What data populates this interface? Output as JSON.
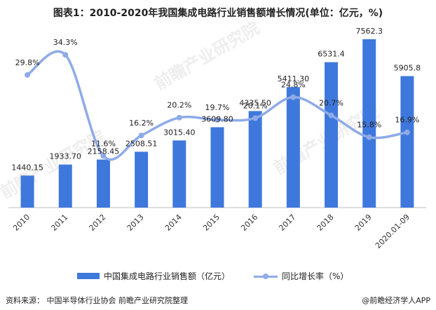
{
  "title": "图表1：2010-2020年我国集成电路行业销售额增长情况(单位：亿元，%)",
  "footer": {
    "source": "资料来源：  中国半导体行业协会  前瞻产业研究院整理",
    "brand": "@前瞻经济学人APP"
  },
  "watermark": "前瞻产业研究院",
  "colors": {
    "bar": "#3f78dc",
    "line": "#8eabe8",
    "marker": "#8eabe8"
  },
  "chart_data": {
    "type": "bar",
    "categories": [
      "2010",
      "2011",
      "2012",
      "2013",
      "2014",
      "2015",
      "2016",
      "2017",
      "2018",
      "2019",
      "2020.01-09"
    ],
    "series": [
      {
        "name": "中国集成电路行业销售额（亿元）",
        "type": "bar",
        "values": [
          1440.15,
          1933.7,
          2158.45,
          2508.51,
          3015.4,
          3609.8,
          4335.5,
          5411.3,
          6531.4,
          7562.3,
          5905.8
        ],
        "labels": [
          "1440.15",
          "1933.70",
          "2158.45",
          "2508.51",
          "3015.40",
          "3609.80",
          "4335.50",
          "5411.30",
          "6531.4",
          "7562.3",
          "5905.8"
        ]
      },
      {
        "name": "同比增长率（%）",
        "type": "line",
        "values": [
          29.8,
          34.3,
          11.6,
          16.2,
          20.2,
          19.7,
          20.1,
          24.8,
          20.7,
          15.8,
          16.9
        ],
        "labels": [
          "29.8%",
          "34.3%",
          "11.6%",
          "16.2%",
          "20.2%",
          "19.7%",
          "20.1%",
          "24.8%",
          "20.7%",
          "15.8%",
          "16.9%"
        ]
      }
    ],
    "bar_ylim": [
      0,
      8000
    ],
    "line_ylim": [
      0,
      40
    ],
    "grid": false,
    "legend": "bottom"
  }
}
